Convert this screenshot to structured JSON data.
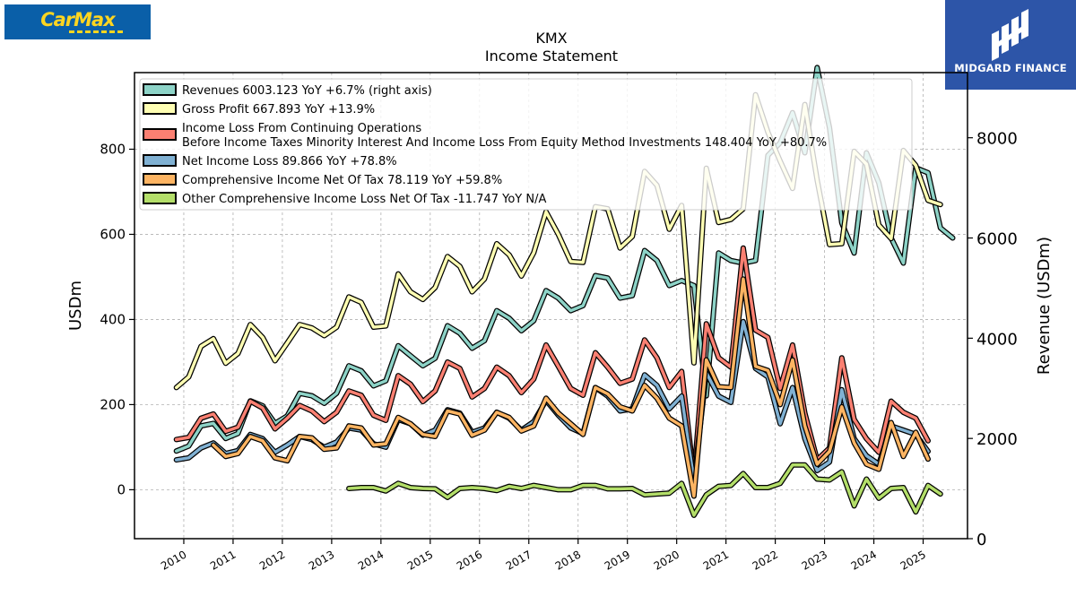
{
  "logos": {
    "left_text": "CarMax",
    "right_text": "MIDGARD FINANCE"
  },
  "chart_data": {
    "type": "line",
    "title": "KMX",
    "subtitle": "Income Statement",
    "ylabel": "USDm",
    "ylabel_right": "Revenue (USDm)",
    "ylim": [
      -115,
      980
    ],
    "ylim_right": [
      0,
      9300
    ],
    "yticks": [
      0,
      200,
      400,
      600,
      800
    ],
    "yticks_right": [
      0,
      2000,
      4000,
      6000,
      8000
    ],
    "xlim": [
      2009.0,
      2025.9
    ],
    "xticks": [
      2010,
      2011,
      2012,
      2013,
      2014,
      2015,
      2016,
      2017,
      2018,
      2019,
      2020,
      2021,
      2022,
      2023,
      2024,
      2025
    ],
    "grid": true,
    "legend_position": "top-left",
    "series": [
      {
        "name": "Revenues  6003.123 YoY +6.7% (right axis)",
        "color": "#8dd3c7",
        "axis": "right",
        "start": 2009.85,
        "values": [
          1750,
          1850,
          2250,
          2300,
          2000,
          2100,
          2750,
          2650,
          2300,
          2450,
          2900,
          2850,
          2700,
          2900,
          3450,
          3350,
          3050,
          3150,
          3850,
          3650,
          3450,
          3600,
          4250,
          4100,
          3800,
          3950,
          4550,
          4400,
          4150,
          4350,
          4950,
          4800,
          4550,
          4650,
          5250,
          5200,
          4800,
          4850,
          5750,
          5550,
          5050,
          5150,
          5050,
          2850,
          5700,
          5550,
          5500,
          5550,
          7650,
          7900,
          8500,
          7700,
          9400,
          8200,
          6300,
          5700,
          7700,
          7100,
          6000,
          5500,
          7400,
          7300,
          6200,
          6000
        ]
      },
      {
        "name": "Gross Profit  667.893 YoY +13.9%",
        "color": "#ffffb3",
        "axis": "left",
        "start": 2009.85,
        "values": [
          240,
          265,
          337,
          355,
          297,
          320,
          388,
          358,
          303,
          345,
          388,
          380,
          362,
          382,
          453,
          440,
          382,
          385,
          507,
          465,
          447,
          475,
          548,
          525,
          465,
          495,
          578,
          552,
          502,
          557,
          653,
          600,
          536,
          534,
          665,
          660,
          568,
          595,
          748,
          715,
          612,
          668,
          298,
          755,
          628,
          635,
          660,
          928,
          840,
          772,
          708,
          905,
          728,
          576,
          578,
          795,
          765,
          622,
          590,
          797,
          762,
          680,
          670
        ]
      },
      {
        "name": "Income Loss From Continuing Operations\nBefore Income Taxes Minority Interest And Income Loss From Equity Method Investments  148.404 YoY +80.7%",
        "color": "#fb8072",
        "axis": "left",
        "start": 2009.85,
        "values": [
          118,
          123,
          168,
          178,
          137,
          147,
          208,
          192,
          143,
          168,
          198,
          185,
          160,
          182,
          232,
          222,
          175,
          163,
          268,
          248,
          207,
          232,
          300,
          285,
          218,
          238,
          288,
          268,
          228,
          260,
          340,
          290,
          238,
          222,
          322,
          288,
          250,
          260,
          352,
          310,
          240,
          278,
          30,
          390,
          310,
          288,
          568,
          375,
          358,
          238,
          340,
          180,
          70,
          98,
          310,
          165,
          120,
          88,
          208,
          182,
          168,
          115
        ]
      },
      {
        "name": "Net Income Loss  89.866 YoY +78.8%",
        "color": "#80b1d3",
        "axis": "left",
        "start": 2009.85,
        "values": [
          70,
          75,
          98,
          110,
          85,
          92,
          130,
          120,
          88,
          105,
          125,
          118,
          100,
          112,
          145,
          140,
          108,
          100,
          165,
          155,
          128,
          140,
          188,
          180,
          135,
          145,
          182,
          168,
          140,
          160,
          210,
          175,
          145,
          132,
          240,
          220,
          185,
          190,
          270,
          245,
          190,
          220,
          20,
          275,
          220,
          205,
          395,
          285,
          265,
          155,
          240,
          120,
          45,
          65,
          235,
          120,
          80,
          60,
          150,
          140,
          130,
          90
        ]
      },
      {
        "name": "Comprehensive Income Net Of Tax  78.119 YoY +59.8%",
        "color": "#fdb462",
        "axis": "left",
        "start": 2010.6,
        "values": [
          105,
          78,
          85,
          125,
          115,
          75,
          68,
          125,
          122,
          95,
          98,
          150,
          145,
          105,
          108,
          170,
          155,
          130,
          125,
          185,
          178,
          128,
          140,
          182,
          170,
          138,
          150,
          215,
          180,
          155,
          130,
          240,
          225,
          195,
          185,
          245,
          215,
          168,
          150,
          -15,
          305,
          242,
          240,
          495,
          290,
          280,
          200,
          305,
          150,
          60,
          90,
          195,
          110,
          60,
          48,
          158,
          78,
          135,
          72
        ]
      },
      {
        "name": "Other Comprehensive Income Loss Net Of Tax  -11.747 YoY N/A",
        "color": "#b3de69",
        "axis": "left",
        "start": 2013.35,
        "values": [
          3,
          5,
          5,
          -3,
          15,
          5,
          3,
          2,
          -18,
          3,
          5,
          3,
          -2,
          8,
          3,
          10,
          5,
          0,
          0,
          10,
          10,
          2,
          2,
          3,
          -12,
          -10,
          -8,
          15,
          -60,
          -12,
          8,
          10,
          38,
          5,
          5,
          15,
          58,
          58,
          25,
          23,
          42,
          -38,
          25,
          -20,
          3,
          5,
          -52,
          10,
          -10
        ]
      }
    ]
  }
}
